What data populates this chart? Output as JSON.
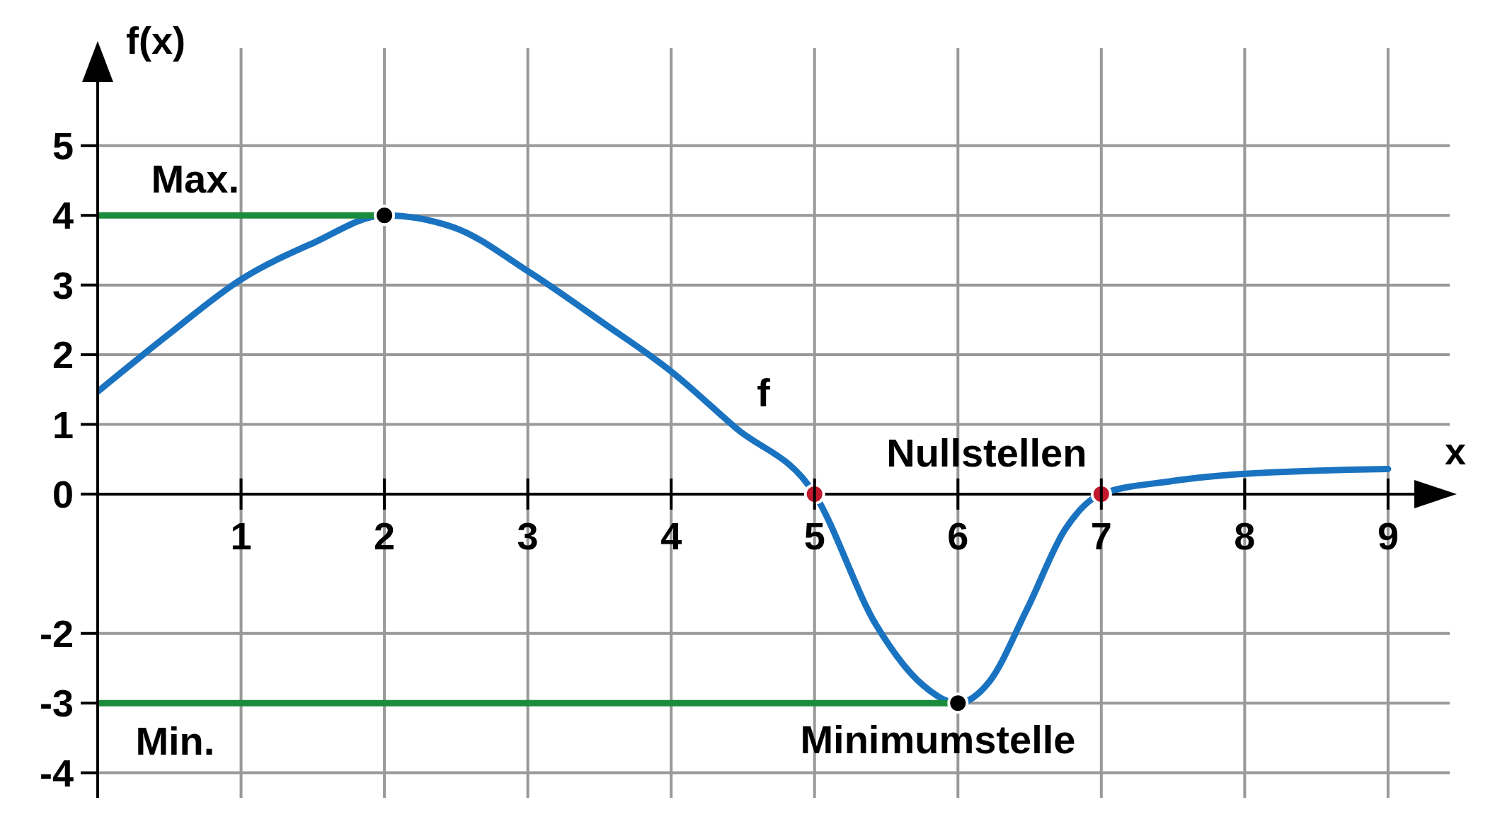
{
  "chart_data": {
    "type": "line",
    "xlabel": "x",
    "ylabel": "f(x)",
    "xlim": [
      0,
      9.43
    ],
    "ylim": [
      -4.36,
      6.4
    ],
    "xticks": [
      1,
      2,
      3,
      4,
      5,
      6,
      7,
      8,
      9
    ],
    "yticks": [
      -4,
      -3,
      -2,
      0,
      1,
      2,
      3,
      4,
      5
    ],
    "grid": true,
    "series": [
      {
        "name": "f",
        "color": "#1a73c0",
        "x": [
          0,
          0.5,
          1,
          1.5,
          2,
          2.48,
          3,
          3.53,
          4,
          4.45,
          5,
          5.43,
          5.76,
          6,
          6.22,
          6.48,
          6.75,
          7,
          7.47,
          8,
          9
        ],
        "values": [
          1.47,
          2.3,
          3.08,
          3.6,
          4,
          3.83,
          3.2,
          2.45,
          1.76,
          0.95,
          0,
          -1.88,
          -2.75,
          -3,
          -2.69,
          -1.66,
          -0.5,
          0,
          0.18,
          0.29,
          0.36
        ]
      },
      {
        "type": "line",
        "color": "#1a8c3c",
        "x": [
          0,
          2
        ],
        "values": [
          4,
          4
        ]
      },
      {
        "type": "line",
        "color": "#1a8c3c",
        "x": [
          0,
          6
        ],
        "values": [
          -3,
          -3
        ]
      },
      {
        "type": "scatter",
        "color": "#000000",
        "x": [
          2,
          6
        ],
        "values": [
          4,
          -3
        ]
      },
      {
        "type": "scatter",
        "color": "#c0192b",
        "x": [
          5,
          7
        ],
        "values": [
          0,
          0
        ]
      }
    ],
    "annotations": [
      "Max.",
      "Min.",
      "Nullstellen",
      "Minimumstelle"
    ]
  }
}
